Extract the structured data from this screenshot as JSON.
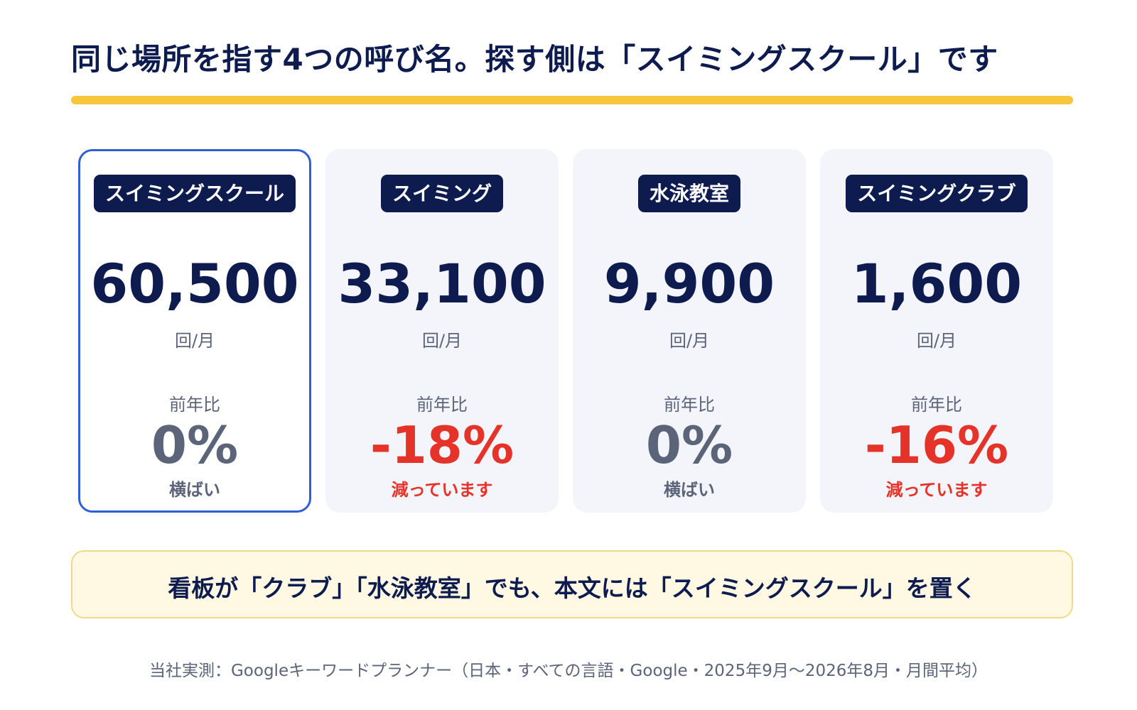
{
  "title": "同じ場所を指す4つの呼び名。探す側は「スイミングスクール」です",
  "colors": {
    "navy": "#0d1b4f",
    "accent_bar": "#f8c63c",
    "highlight_border": "#2f5fd6",
    "flat": "#5b6478",
    "decline": "#e5332a",
    "card_bg": "#f3f5fb",
    "callout_bg": "#fff8e2"
  },
  "chart_data": {
    "type": "table",
    "title": "同じ場所を指す4つの呼び名。探す側は「スイミングスクール」です",
    "unit": "回/月",
    "yoy_label": "前年比",
    "categories": [
      "スイミングスクール",
      "スイミング",
      "水泳教室",
      "スイミングクラブ"
    ],
    "series": [
      {
        "name": "回/月",
        "values": [
          60500,
          33100,
          9900,
          1600
        ]
      },
      {
        "name": "前年比",
        "values": [
          0,
          -18,
          0,
          -16
        ]
      }
    ],
    "cards": [
      {
        "keyword": "スイミングスクール",
        "volume": "60,500",
        "unit": "回/月",
        "yoy_label": "前年比",
        "yoy": "0%",
        "yoy_note": "横ばい",
        "trend": "flat",
        "highlight": true
      },
      {
        "keyword": "スイミング",
        "volume": "33,100",
        "unit": "回/月",
        "yoy_label": "前年比",
        "yoy": "-18%",
        "yoy_note": "減っています",
        "trend": "down",
        "highlight": false
      },
      {
        "keyword": "水泳教室",
        "volume": "9,900",
        "unit": "回/月",
        "yoy_label": "前年比",
        "yoy": "0%",
        "yoy_note": "横ばい",
        "trend": "flat",
        "highlight": false
      },
      {
        "keyword": "スイミングクラブ",
        "volume": "1,600",
        "unit": "回/月",
        "yoy_label": "前年比",
        "yoy": "-16%",
        "yoy_note": "減っています",
        "trend": "down",
        "highlight": false
      }
    ]
  },
  "callout": "看板が「クラブ」「水泳教室」でも、本文には「スイミングスクール」を置く",
  "source": "当社実測：Googleキーワードプランナー（日本・すべての言語・Google・2025年9月〜2026年8月・月間平均）"
}
